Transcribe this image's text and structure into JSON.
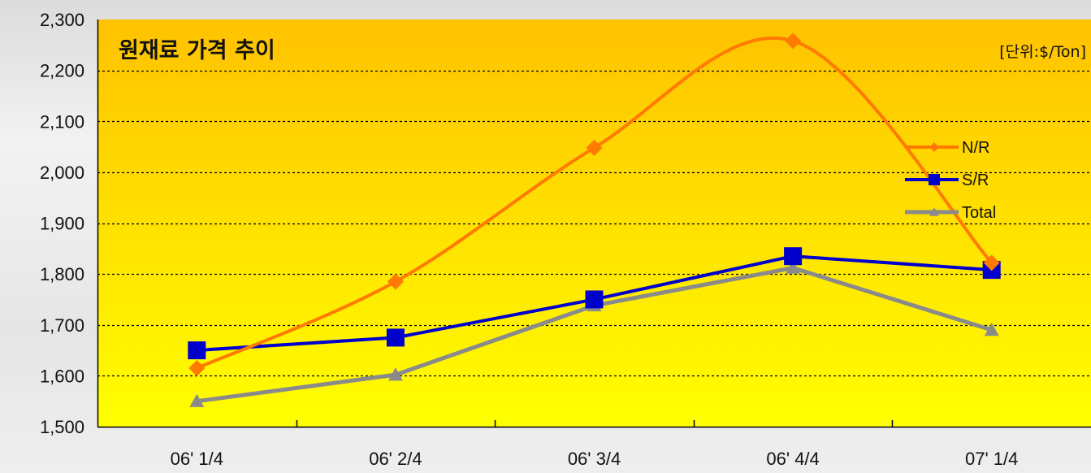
{
  "chart_data": {
    "type": "line",
    "title": "원재료 가격 추이",
    "unit_label": "[단위:$/Ton]",
    "categories": [
      "06' 1/4",
      "06' 2/4",
      "06' 3/4",
      "06' 4/4",
      "07' 1/4"
    ],
    "ylim": [
      1500,
      2300
    ],
    "ytick_values": [
      1500,
      1600,
      1700,
      1800,
      1900,
      2000,
      2100,
      2200,
      2300
    ],
    "ytick_labels": [
      "1,500",
      "1,600",
      "1,700",
      "1,800",
      "1,900",
      "2,000",
      "2,100",
      "2,200",
      "2,300"
    ],
    "grid": true,
    "legend_position": "right",
    "background_colors": [
      "#ffc200",
      "#ffff00"
    ],
    "series": [
      {
        "name": "N/R",
        "values": [
          1615,
          1785,
          2048,
          2258,
          1822
        ],
        "color": "#ff7a00",
        "marker": "diamond",
        "smooth": true
      },
      {
        "name": "S/R",
        "values": [
          1650,
          1675,
          1750,
          1835,
          1808
        ],
        "color": "#0000cc",
        "marker": "square",
        "smooth": false
      },
      {
        "name": "Total",
        "values": [
          1550,
          1602,
          1738,
          1812,
          1690
        ],
        "color": "#8a8a8a",
        "marker": "triangle",
        "smooth": false
      }
    ]
  }
}
